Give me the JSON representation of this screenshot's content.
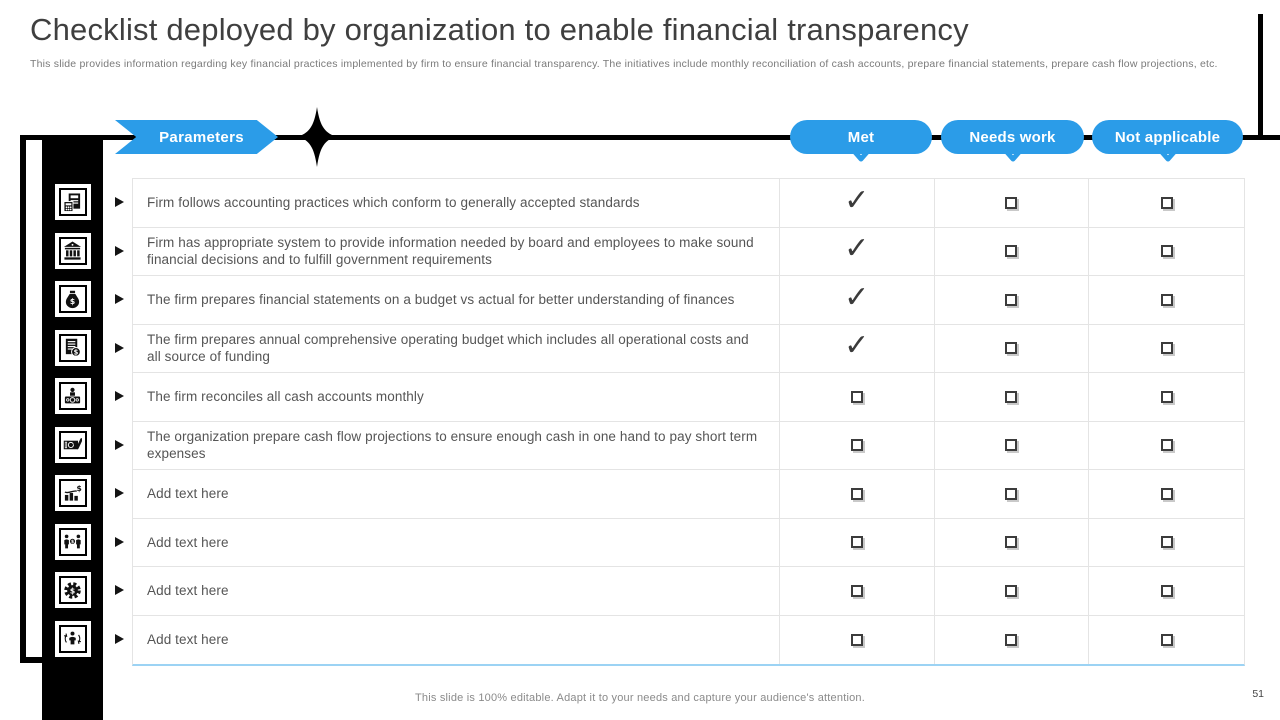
{
  "slide": {
    "title": "Checklist deployed by organization to enable financial transparency",
    "description": "This slide provides information regarding key financial practices implemented by firm to  ensure financial transparency. The initiatives include monthly reconciliation of cash accounts, prepare financial statements, prepare cash flow projections, etc.",
    "footer_note": "This slide is 100% editable. Adapt it to your needs and capture your audience's attention.",
    "page_number": "51"
  },
  "header": {
    "row_label": "Parameters",
    "status_columns": [
      "Met",
      "Needs work",
      "Not applicable"
    ]
  },
  "checklist": {
    "rows": [
      {
        "icon": "accounting-calculator-icon",
        "parameter": "Firm follows accounting practices which conform to generally accepted standards",
        "statuses": [
          "checked",
          "unchecked",
          "unchecked"
        ]
      },
      {
        "icon": "bank-building-icon",
        "parameter": "Firm has appropriate system to provide information needed by board and employees to make sound financial decisions and to fulfill government requirements",
        "statuses": [
          "checked",
          "unchecked",
          "unchecked"
        ]
      },
      {
        "icon": "money-bag-icon",
        "parameter": "The firm prepares financial statements on a budget vs actual for better understanding of finances",
        "statuses": [
          "checked",
          "unchecked",
          "unchecked"
        ]
      },
      {
        "icon": "budget-invoice-icon",
        "parameter": "The firm prepares annual comprehensive operating budget which includes all operational costs and all source of funding",
        "statuses": [
          "checked",
          "unchecked",
          "unchecked"
        ]
      },
      {
        "icon": "podium-cash-icon",
        "parameter": "The firm reconciles all cash accounts monthly",
        "statuses": [
          "unchecked",
          "unchecked",
          "unchecked"
        ]
      },
      {
        "icon": "banknote-check-icon",
        "parameter": "The organization prepare cash flow projections to ensure enough cash in one hand to pay short term expenses",
        "statuses": [
          "unchecked",
          "unchecked",
          "unchecked"
        ]
      },
      {
        "icon": "financial-chart-icon",
        "parameter": "Add text here",
        "statuses": [
          "unchecked",
          "unchecked",
          "unchecked"
        ]
      },
      {
        "icon": "people-money-icon",
        "parameter": "Add text here",
        "statuses": [
          "unchecked",
          "unchecked",
          "unchecked"
        ]
      },
      {
        "icon": "gear-dollar-icon",
        "parameter": "Add text here",
        "statuses": [
          "unchecked",
          "unchecked",
          "unchecked"
        ]
      },
      {
        "icon": "person-cash-cycle-icon",
        "parameter": "Add text here",
        "statuses": [
          "unchecked",
          "unchecked",
          "unchecked"
        ]
      }
    ]
  },
  "glyphs": {
    "check": "✓"
  },
  "colors": {
    "accent_blue": "#2B9CE8",
    "table_border": "#E4E4E4",
    "table_bottom": "#9CD3F4"
  }
}
